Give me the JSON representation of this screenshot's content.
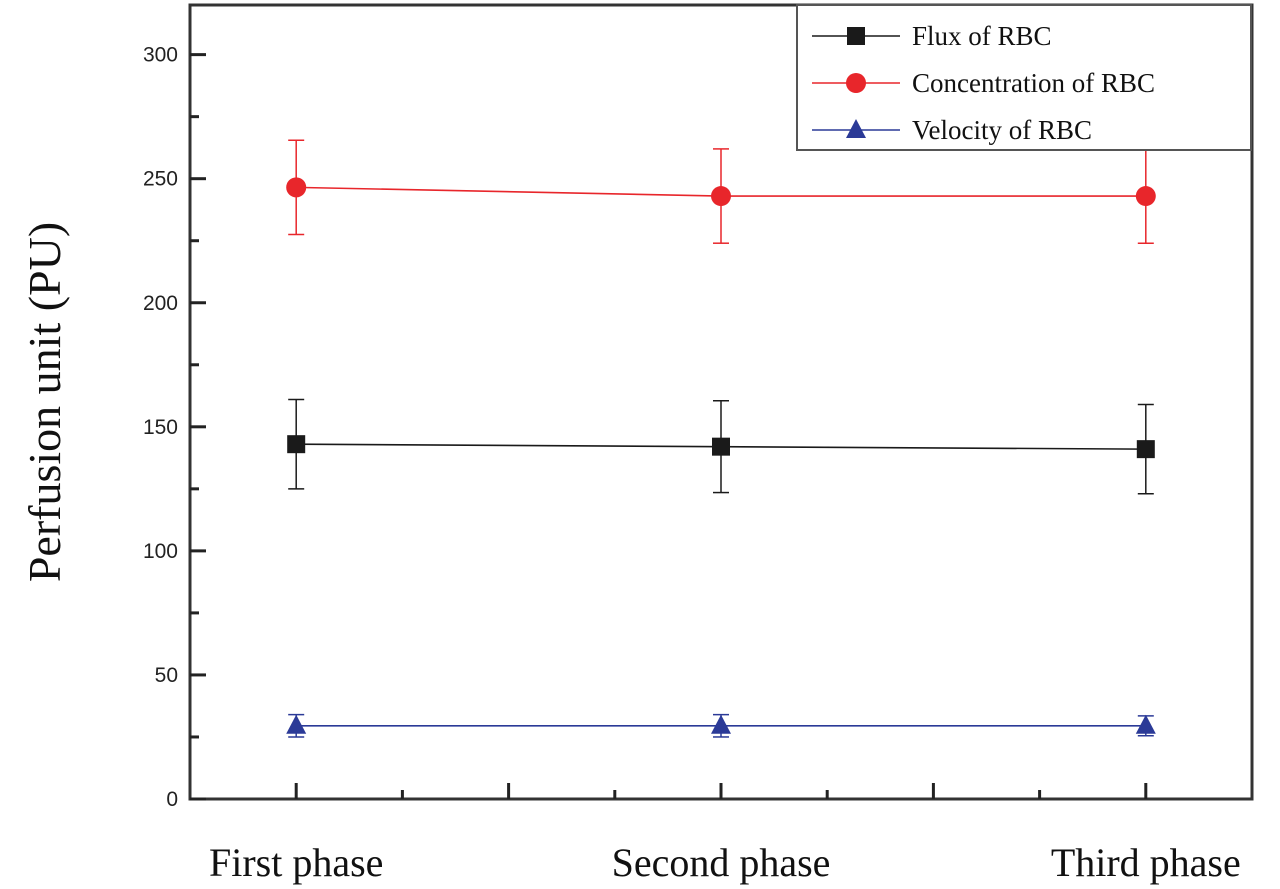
{
  "chart_data": {
    "type": "line",
    "title": "",
    "xlabel": "",
    "ylabel": "Perfusion unit (PU)",
    "categories": [
      "First phase",
      "Second phase",
      "Third phase"
    ],
    "x": [
      1,
      2,
      3
    ],
    "xlim": [
      0.75,
      3.25
    ],
    "ylim": [
      0,
      320
    ],
    "yticks": [
      0,
      50,
      100,
      150,
      200,
      250,
      300
    ],
    "grid": false,
    "legend_position": "top-right",
    "series": [
      {
        "name": "Flux of RBC",
        "marker": "square",
        "color": "#1a1a1a",
        "values": [
          143,
          142,
          141
        ],
        "errors": [
          18,
          18.5,
          18
        ]
      },
      {
        "name": "Concentration of RBC",
        "marker": "circle",
        "color": "#e8262b",
        "values": [
          246.5,
          243,
          243
        ],
        "errors": [
          19,
          19,
          19
        ]
      },
      {
        "name": "Velocity of RBC",
        "marker": "triangle",
        "color": "#2b3a97",
        "values": [
          29.5,
          29.5,
          29.5
        ],
        "errors": [
          4.5,
          4.5,
          4
        ]
      }
    ]
  }
}
